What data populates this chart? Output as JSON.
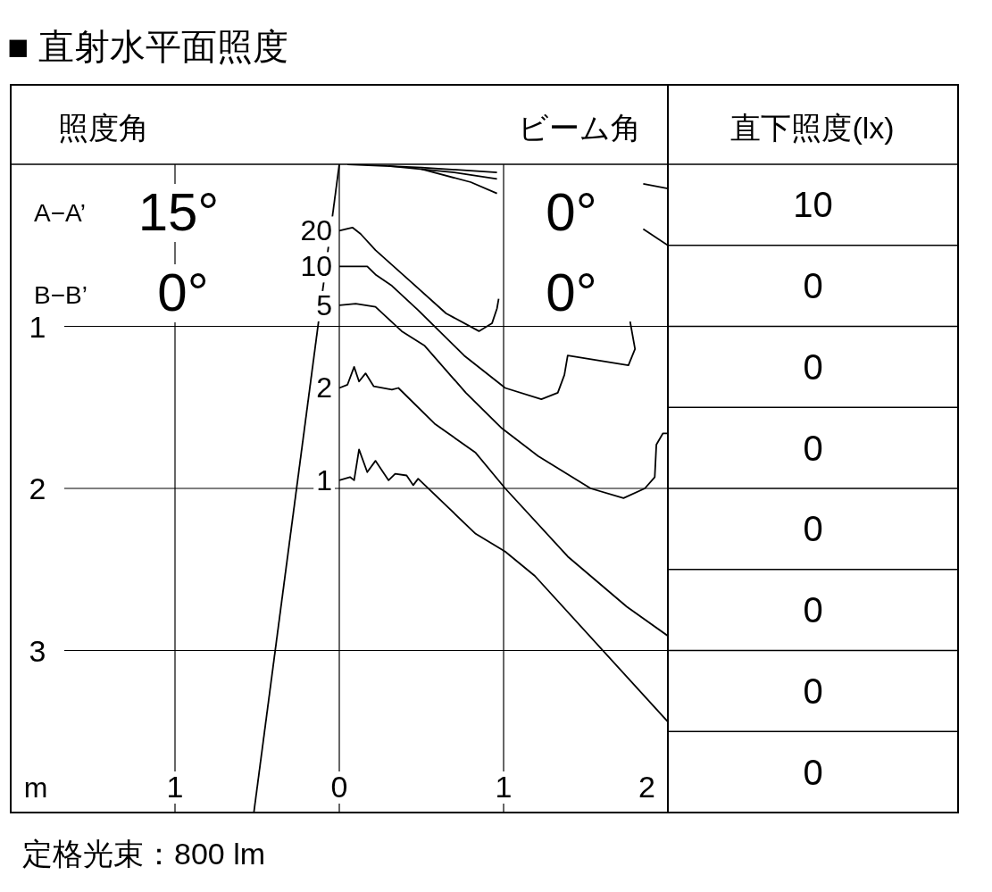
{
  "chart_data": {
    "type": "line",
    "title": "■ 直射水平面照度",
    "xlabel": "m",
    "xlim": [
      -2,
      2
    ],
    "ylim": [
      4,
      0
    ],
    "xticks": [
      {
        "value": -1,
        "label": "1"
      },
      0,
      1,
      2
    ],
    "yticks": [
      1,
      2,
      3
    ],
    "grid": true,
    "series": [
      {
        "name": "20",
        "color": "#000000",
        "x": [
          0,
          0.08,
          0.13,
          0.22,
          0.43,
          0.65,
          0.85,
          0.93,
          0.96,
          0.97
        ],
        "values": [
          0.41,
          0.39,
          0.43,
          0.53,
          0.72,
          0.92,
          1.03,
          0.98,
          0.89,
          0.83
        ]
      },
      {
        "name": "10",
        "color": "#000000",
        "x": [
          0,
          0.17,
          0.22,
          0.32,
          0.48,
          0.76,
          1.01,
          1.23,
          1.33,
          1.37,
          1.39,
          1.76,
          1.8,
          1.77
        ],
        "values": [
          0.63,
          0.63,
          0.68,
          0.75,
          0.9,
          1.18,
          1.38,
          1.45,
          1.41,
          1.3,
          1.18,
          1.24,
          1.14,
          0.97
        ]
      },
      {
        "name": "5",
        "color": "#000000",
        "x": [
          0,
          0.1,
          0.22,
          0.38,
          0.52,
          0.77,
          0.99,
          1.21,
          1.53,
          1.73,
          1.86,
          1.92,
          1.93,
          1.97,
          2.0
        ],
        "values": [
          0.87,
          0.86,
          0.88,
          1.03,
          1.12,
          1.41,
          1.63,
          1.8,
          2.0,
          2.06,
          2.0,
          1.93,
          1.73,
          1.66,
          1.66
        ]
      },
      {
        "name": "2",
        "color": "#000000",
        "x": [
          0,
          0.05,
          0.09,
          0.12,
          0.16,
          0.21,
          0.32,
          0.36,
          0.58,
          0.83,
          1.01,
          1.39,
          1.75,
          2.0
        ],
        "values": [
          1.38,
          1.36,
          1.25,
          1.34,
          1.29,
          1.37,
          1.39,
          1.38,
          1.6,
          1.78,
          2.0,
          2.42,
          2.73,
          2.91
        ]
      },
      {
        "name": "1",
        "color": "#000000",
        "x": [
          0,
          0.065,
          0.09,
          0.12,
          0.17,
          0.22,
          0.3,
          0.34,
          0.41,
          0.45,
          0.48,
          0.83,
          1.01,
          1.19,
          2.0
        ],
        "values": [
          1.95,
          1.93,
          1.95,
          1.76,
          1.9,
          1.83,
          1.95,
          1.91,
          1.92,
          1.98,
          1.94,
          2.28,
          2.39,
          2.54,
          3.44
        ]
      },
      {
        "color": "#000000",
        "x": [
          0.05,
          0.5,
          0.96
        ],
        "values": [
          0.0,
          0.02,
          0.05
        ]
      },
      {
        "color": "#000000",
        "x": [
          0.3,
          0.7,
          0.96
        ],
        "values": [
          0.01,
          0.05,
          0.09
        ]
      },
      {
        "color": "#000000",
        "x": [
          0.5,
          0.8,
          0.96
        ],
        "values": [
          0.03,
          0.11,
          0.18
        ]
      },
      {
        "color": "#000000",
        "x": [
          1.85,
          2.0
        ],
        "values": [
          0.12,
          0.15
        ]
      },
      {
        "color": "#000000",
        "x": [
          1.85,
          2.0
        ],
        "values": [
          0.4,
          0.5
        ]
      },
      {
        "color": "#000000",
        "x": [
          0,
          -0.52
        ],
        "values": [
          0,
          4
        ]
      }
    ],
    "annotations": [
      "照度角",
      "ビーム角",
      "直下照度(lx)",
      "A−A’",
      "15°",
      "0°",
      "B−B’",
      "0°",
      "0°",
      "10",
      "0",
      "0",
      "0",
      "0",
      "0",
      "0",
      "0",
      "定格光束：800 lm"
    ]
  }
}
